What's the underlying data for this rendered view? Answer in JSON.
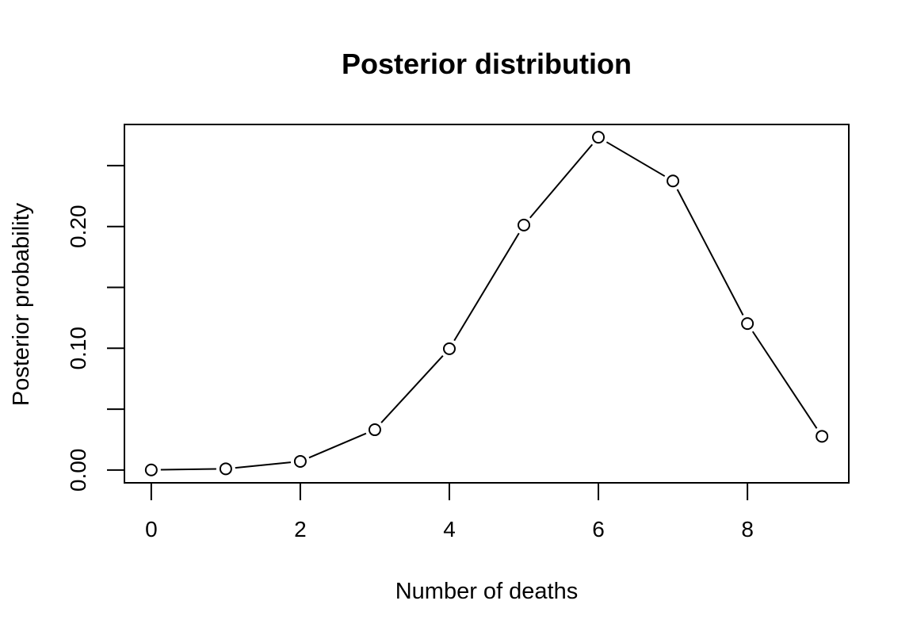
{
  "chart_data": {
    "type": "line",
    "title": "Posterior distribution",
    "xlabel": "Number of deaths",
    "ylabel": "Posterior probability",
    "x": [
      0,
      1,
      2,
      3,
      4,
      5,
      6,
      7,
      8,
      9
    ],
    "values": [
      0.0001,
      0.001,
      0.0071,
      0.0331,
      0.0996,
      0.2012,
      0.2733,
      0.2374,
      0.1203,
      0.0277
    ],
    "xlim": [
      -0.36,
      9.36
    ],
    "ylim": [
      -0.0105,
      0.2838
    ],
    "x_ticks": [
      0,
      2,
      4,
      6,
      8
    ],
    "x_tick_labels": [
      "0",
      "2",
      "4",
      "6",
      "8"
    ],
    "y_ticks": [
      0.0,
      0.05,
      0.1,
      0.15,
      0.2,
      0.25
    ],
    "y_tick_labels": [
      "0.00",
      "",
      "0.10",
      "",
      "0.20",
      ""
    ],
    "markers": "open-circle",
    "grid": false,
    "colors": {
      "line": "#000000",
      "marker_fill": "#ffffff",
      "marker_stroke": "#000000"
    }
  }
}
